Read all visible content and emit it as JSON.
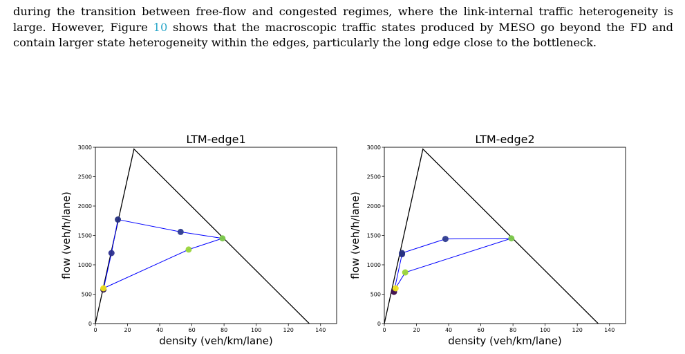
{
  "paragraph": {
    "part1": "during the transition between free-flow and congested regimes, where the link-internal traffic heterogeneity is large. However, Figure ",
    "ref": "10",
    "part2": " shows that the macroscopic traffic states produced by MESO go beyond the FD and contain larger state heterogeneity within the edges, particularly the long edge close to the bottleneck."
  },
  "chart_data": [
    {
      "type": "scatter",
      "title": "LTM-edge1",
      "xlabel": "density (veh/km/lane)",
      "ylabel": "flow (veh/h/lane)",
      "xlim": [
        0,
        150
      ],
      "ylim": [
        0,
        3000
      ],
      "xticks": [
        0,
        20,
        40,
        60,
        80,
        100,
        120,
        140
      ],
      "yticks": [
        0,
        500,
        1000,
        1500,
        2000,
        2500,
        3000
      ],
      "fundamental_diagram": [
        [
          0,
          0
        ],
        [
          24,
          2970
        ],
        [
          133,
          0
        ]
      ],
      "path_color": "#0000ff",
      "path": [
        [
          5,
          580
        ],
        [
          10,
          1200
        ],
        [
          14,
          1770
        ],
        [
          53,
          1560
        ],
        [
          79,
          1450
        ],
        [
          58,
          1260
        ],
        [
          5,
          600
        ]
      ],
      "points": [
        {
          "x": 5,
          "y": 580,
          "color": "#2b0f4c"
        },
        {
          "x": 5,
          "y": 600,
          "color": "#f0e41e"
        },
        {
          "x": 10,
          "y": 1200,
          "color": "#2c2f8f"
        },
        {
          "x": 14,
          "y": 1770,
          "color": "#26307f"
        },
        {
          "x": 53,
          "y": 1560,
          "color": "#2e3c8f"
        },
        {
          "x": 58,
          "y": 1260,
          "color": "#9ad53a"
        },
        {
          "x": 79,
          "y": 1450,
          "color": "#7cc94a"
        }
      ]
    },
    {
      "type": "scatter",
      "title": "LTM-edge2",
      "xlabel": "density (veh/km/lane)",
      "ylabel": "flow (veh/h/lane)",
      "xlim": [
        0,
        150
      ],
      "ylim": [
        0,
        3000
      ],
      "xticks": [
        0,
        20,
        40,
        60,
        80,
        100,
        120,
        140
      ],
      "yticks": [
        0,
        500,
        1000,
        1500,
        2000,
        2500,
        3000
      ],
      "fundamental_diagram": [
        [
          0,
          0
        ],
        [
          24,
          2970
        ],
        [
          133,
          0
        ]
      ],
      "path_color": "#0000ff",
      "path": [
        [
          6,
          540
        ],
        [
          11,
          1180
        ],
        [
          11,
          1200
        ],
        [
          38,
          1440
        ],
        [
          79,
          1450
        ],
        [
          13,
          870
        ],
        [
          6,
          560
        ]
      ],
      "points": [
        {
          "x": 6,
          "y": 540,
          "color": "#3b0a4a"
        },
        {
          "x": 7,
          "y": 600,
          "color": "#f0e41e"
        },
        {
          "x": 11,
          "y": 1180,
          "color": "#2c2f8f"
        },
        {
          "x": 11,
          "y": 1200,
          "color": "#26307f"
        },
        {
          "x": 13,
          "y": 870,
          "color": "#9ad53a"
        },
        {
          "x": 38,
          "y": 1440,
          "color": "#2e3c8f"
        },
        {
          "x": 79,
          "y": 1450,
          "color": "#7cc94a"
        }
      ]
    }
  ]
}
